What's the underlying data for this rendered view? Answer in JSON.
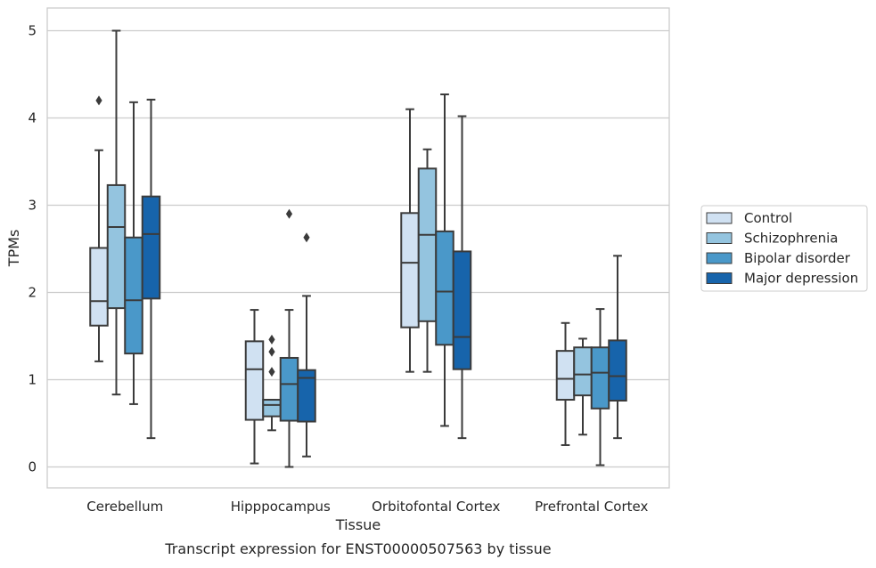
{
  "chart_data": {
    "type": "boxplot",
    "title": "Transcript expression for ENST00000507563 by tissue",
    "xlabel": "Tissue",
    "ylabel": "TPMs",
    "ylim": [
      -0.24,
      5.26
    ],
    "yticks": [
      0,
      1,
      2,
      3,
      4,
      5
    ],
    "grid": "horizontal",
    "legend_placement": "right",
    "categories": [
      "Cerebellum",
      "Hipppocampus",
      "Orbitofontal Cortex",
      "Prefrontal Cortex"
    ],
    "series": [
      {
        "name": "Control",
        "color": "#d0e1f2",
        "boxes": [
          {
            "whisker_low": 1.21,
            "q1": 1.62,
            "median": 1.9,
            "q3": 2.51,
            "whisker_high": 3.63,
            "outliers": [
              4.2
            ]
          },
          {
            "whisker_low": 0.04,
            "q1": 0.54,
            "median": 1.12,
            "q3": 1.44,
            "whisker_high": 1.8,
            "outliers": []
          },
          {
            "whisker_low": 1.09,
            "q1": 1.6,
            "median": 2.34,
            "q3": 2.91,
            "whisker_high": 4.1,
            "outliers": []
          },
          {
            "whisker_low": 0.25,
            "q1": 0.77,
            "median": 1.01,
            "q3": 1.33,
            "whisker_high": 1.65,
            "outliers": []
          }
        ]
      },
      {
        "name": "Schizophrenia",
        "color": "#94c4df",
        "boxes": [
          {
            "whisker_low": 0.83,
            "q1": 1.82,
            "median": 2.75,
            "q3": 3.23,
            "whisker_high": 5.0,
            "outliers": []
          },
          {
            "whisker_low": 0.42,
            "q1": 0.58,
            "median": 0.71,
            "q3": 0.77,
            "whisker_high": 0.77,
            "outliers": [
              1.09,
              1.32,
              1.46
            ]
          },
          {
            "whisker_low": 1.09,
            "q1": 1.67,
            "median": 2.66,
            "q3": 3.42,
            "whisker_high": 3.64,
            "outliers": []
          },
          {
            "whisker_low": 0.37,
            "q1": 0.82,
            "median": 1.06,
            "q3": 1.37,
            "whisker_high": 1.47,
            "outliers": []
          }
        ]
      },
      {
        "name": "Bipolar disorder",
        "color": "#4a98c9",
        "boxes": [
          {
            "whisker_low": 0.72,
            "q1": 1.3,
            "median": 1.91,
            "q3": 2.63,
            "whisker_high": 4.18,
            "outliers": []
          },
          {
            "whisker_low": 0.0,
            "q1": 0.53,
            "median": 0.95,
            "q3": 1.25,
            "whisker_high": 1.8,
            "outliers": [
              2.9
            ]
          },
          {
            "whisker_low": 0.47,
            "q1": 1.4,
            "median": 2.01,
            "q3": 2.7,
            "whisker_high": 4.27,
            "outliers": []
          },
          {
            "whisker_low": 0.02,
            "q1": 0.67,
            "median": 1.08,
            "q3": 1.37,
            "whisker_high": 1.81,
            "outliers": []
          }
        ]
      },
      {
        "name": "Major depression",
        "color": "#1764ab",
        "boxes": [
          {
            "whisker_low": 0.33,
            "q1": 1.93,
            "median": 2.67,
            "q3": 3.1,
            "whisker_high": 4.21,
            "outliers": []
          },
          {
            "whisker_low": 0.12,
            "q1": 0.52,
            "median": 1.02,
            "q3": 1.11,
            "whisker_high": 1.96,
            "outliers": [
              2.63
            ]
          },
          {
            "whisker_low": 0.33,
            "q1": 1.12,
            "median": 1.49,
            "q3": 2.47,
            "whisker_high": 4.02,
            "outliers": []
          },
          {
            "whisker_low": 0.33,
            "q1": 0.76,
            "median": 1.04,
            "q3": 1.45,
            "whisker_high": 2.42,
            "outliers": []
          }
        ]
      }
    ]
  }
}
